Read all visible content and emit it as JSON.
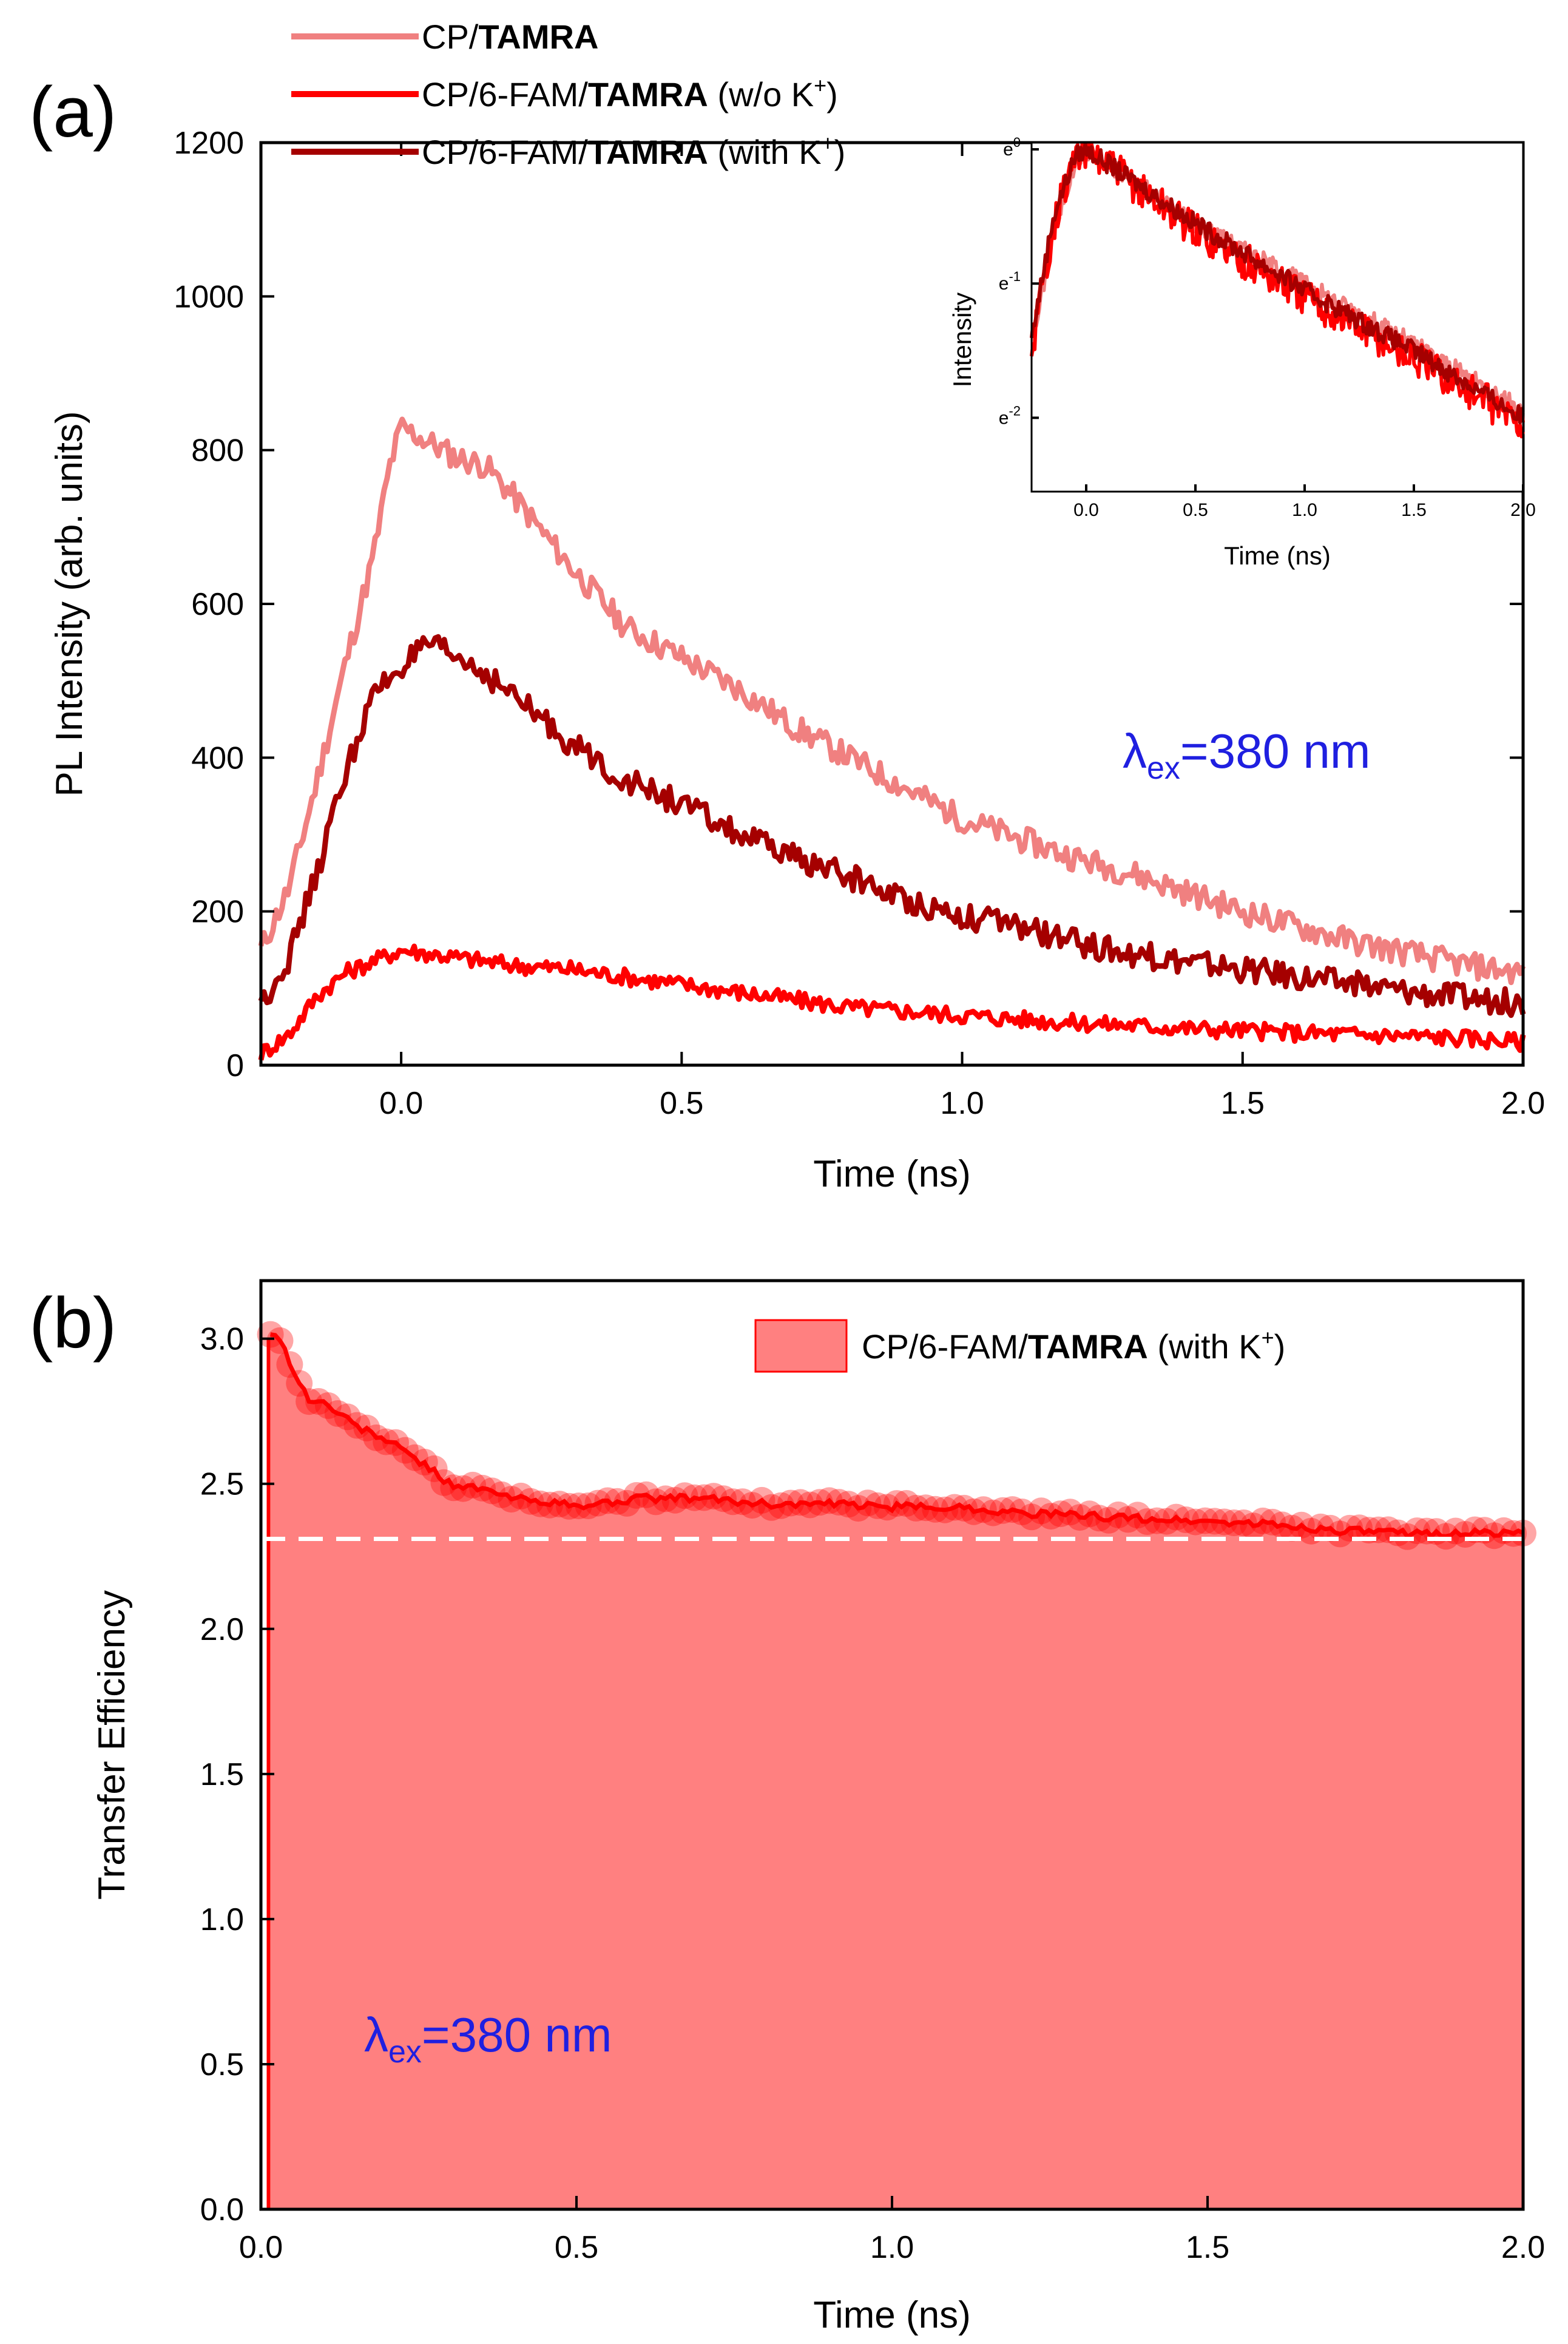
{
  "chart_data": [
    {
      "panel": "(a)",
      "type": "line",
      "xlabel": "Time (ns)",
      "ylabel": "PL Intensity (arb. units)",
      "xlim": [
        -0.25,
        2.0
      ],
      "ylim": [
        0,
        1200
      ],
      "xticks": [
        0.0,
        0.5,
        1.0,
        1.5,
        2.0
      ],
      "xtick_labels": [
        "0.0",
        "0.5",
        "1.0",
        "1.5",
        "2.0"
      ],
      "yticks": [
        0,
        200,
        400,
        600,
        800,
        1000,
        1200
      ],
      "ytick_labels": [
        "0",
        "200",
        "400",
        "600",
        "800",
        "1000",
        "1200"
      ],
      "annotation": {
        "symbol": "λ",
        "sub": "ex",
        "value": "=380 nm"
      },
      "legend_position": "top-left",
      "series": [
        {
          "name": "CP/",
          "name_bold": "TAMRA",
          "name_suffix": "",
          "name_sup": "",
          "name_end": "",
          "color": "#f08080",
          "x": [
            -0.25,
            -0.2,
            -0.15,
            -0.1,
            -0.05,
            -0.02,
            0.0,
            0.05,
            0.1,
            0.15,
            0.2,
            0.3,
            0.4,
            0.5,
            0.6,
            0.7,
            0.8,
            0.9,
            1.0,
            1.1,
            1.2,
            1.3,
            1.4,
            1.5,
            1.6,
            1.7,
            1.8,
            1.9,
            2.0
          ],
          "y": [
            150,
            230,
            370,
            520,
            660,
            780,
            830,
            810,
            790,
            780,
            740,
            650,
            570,
            530,
            490,
            440,
            400,
            360,
            320,
            295,
            270,
            250,
            225,
            200,
            180,
            160,
            145,
            130,
            120
          ]
        },
        {
          "name": "CP/6-FAM/",
          "name_bold": "TAMRA",
          "name_suffix": " (w/o K",
          "name_sup": "+",
          "name_end": ")",
          "color": "#ff0000",
          "x": [
            -0.25,
            -0.2,
            -0.15,
            -0.1,
            -0.05,
            0.0,
            0.05,
            0.1,
            0.2,
            0.3,
            0.4,
            0.5,
            0.6,
            0.7,
            0.8,
            0.9,
            1.0,
            1.1,
            1.2,
            1.3,
            1.4,
            1.5,
            1.6,
            1.7,
            1.8,
            1.9,
            2.0
          ],
          "y": [
            15,
            40,
            90,
            120,
            135,
            150,
            145,
            140,
            130,
            125,
            115,
            105,
            95,
            85,
            75,
            70,
            65,
            60,
            55,
            52,
            48,
            45,
            42,
            40,
            38,
            35,
            30
          ]
        },
        {
          "name": "CP/6-FAM/",
          "name_bold": "TAMRA",
          "name_suffix": " (with K",
          "name_sup": "+",
          "name_end": ")",
          "color": "#a50000",
          "x": [
            -0.25,
            -0.2,
            -0.15,
            -0.1,
            -0.05,
            0.0,
            0.05,
            0.1,
            0.15,
            0.2,
            0.3,
            0.4,
            0.5,
            0.6,
            0.7,
            0.8,
            0.9,
            1.0,
            1.1,
            1.2,
            1.3,
            1.4,
            1.5,
            1.6,
            1.7,
            1.8,
            1.9,
            2.0
          ],
          "y": [
            80,
            140,
            250,
            380,
            480,
            520,
            545,
            530,
            510,
            480,
            420,
            370,
            340,
            300,
            270,
            245,
            215,
            195,
            180,
            160,
            145,
            135,
            125,
            115,
            105,
            95,
            88,
            80
          ]
        }
      ]
    },
    {
      "panel": "(a) inset",
      "type": "line",
      "xlabel": "Time (ns)",
      "ylabel": "Intensity",
      "xlim": [
        -0.25,
        2.0
      ],
      "ylim_log": [
        -2.55,
        0.05
      ],
      "xticks": [
        0.0,
        0.5,
        1.0,
        1.5,
        2.0
      ],
      "xtick_labels": [
        "0.0",
        "0.5",
        "1.0",
        "1.5",
        "2.0"
      ],
      "yticks_log": [
        0,
        -1,
        -2
      ],
      "ytick_base": "e",
      "ytick_exponents": [
        "0",
        "-1",
        "-2"
      ],
      "series": [
        {
          "name": "CP/TAMRA",
          "color": "#f08080",
          "x": [
            -0.25,
            -0.15,
            -0.05,
            0.0,
            0.5,
            1.0,
            1.5,
            2.0
          ],
          "y_log": [
            -1.5,
            -0.6,
            -0.1,
            0.0,
            -0.55,
            -1.0,
            -1.45,
            -1.95
          ]
        },
        {
          "name": "CP/6-FAM/TAMRA (w/o K+)",
          "color": "#ff0000",
          "x": [
            -0.25,
            -0.15,
            -0.05,
            0.0,
            0.5,
            1.0,
            1.5,
            2.0
          ],
          "y_log": [
            -1.5,
            -0.55,
            -0.05,
            0.0,
            -0.6,
            -1.1,
            -1.55,
            -2.05
          ]
        },
        {
          "name": "CP/6-FAM/TAMRA (with K+)",
          "color": "#a50000",
          "x": [
            -0.25,
            -0.15,
            -0.05,
            0.0,
            0.5,
            1.0,
            1.5,
            2.0
          ],
          "y_log": [
            -1.4,
            -0.5,
            -0.05,
            0.0,
            -0.55,
            -1.05,
            -1.5,
            -2.0
          ]
        }
      ]
    },
    {
      "panel": "(b)",
      "type": "area",
      "xlabel": "Time (ns)",
      "ylabel": "Transfer Efficiency",
      "xlim": [
        0.0,
        2.0
      ],
      "ylim": [
        0.0,
        3.2
      ],
      "xticks": [
        0.0,
        0.5,
        1.0,
        1.5,
        2.0
      ],
      "xtick_labels": [
        "0.0",
        "0.5",
        "1.0",
        "1.5",
        "2.0"
      ],
      "yticks": [
        0.0,
        0.5,
        1.0,
        1.5,
        2.0,
        2.5,
        3.0
      ],
      "ytick_labels": [
        "0.0",
        "0.5",
        "1.0",
        "1.5",
        "2.0",
        "2.5",
        "3.0"
      ],
      "reference_line": 2.31,
      "annotation": {
        "symbol": "λ",
        "sub": "ex",
        "value": "=380 nm"
      },
      "legend_position": "top-right",
      "series": [
        {
          "name": "CP/6-FAM/",
          "name_bold": "TAMRA",
          "name_suffix": " (with K",
          "name_sup": "+",
          "name_end": ")",
          "color": "#ff0000",
          "fill": "#ff8080",
          "x": [
            0.0,
            0.02,
            0.04,
            0.06,
            0.08,
            0.1,
            0.15,
            0.2,
            0.25,
            0.3,
            0.35,
            0.4,
            0.45,
            0.5,
            0.6,
            0.7,
            0.8,
            0.9,
            1.0,
            1.1,
            1.2,
            1.3,
            1.4,
            1.5,
            1.6,
            1.7,
            1.8,
            1.9,
            2.0
          ],
          "y": [
            3.0,
            3.03,
            2.95,
            2.85,
            2.78,
            2.78,
            2.7,
            2.65,
            2.58,
            2.5,
            2.48,
            2.45,
            2.44,
            2.42,
            2.45,
            2.45,
            2.43,
            2.43,
            2.42,
            2.42,
            2.4,
            2.39,
            2.38,
            2.37,
            2.36,
            2.34,
            2.33,
            2.33,
            2.33
          ]
        }
      ]
    }
  ]
}
